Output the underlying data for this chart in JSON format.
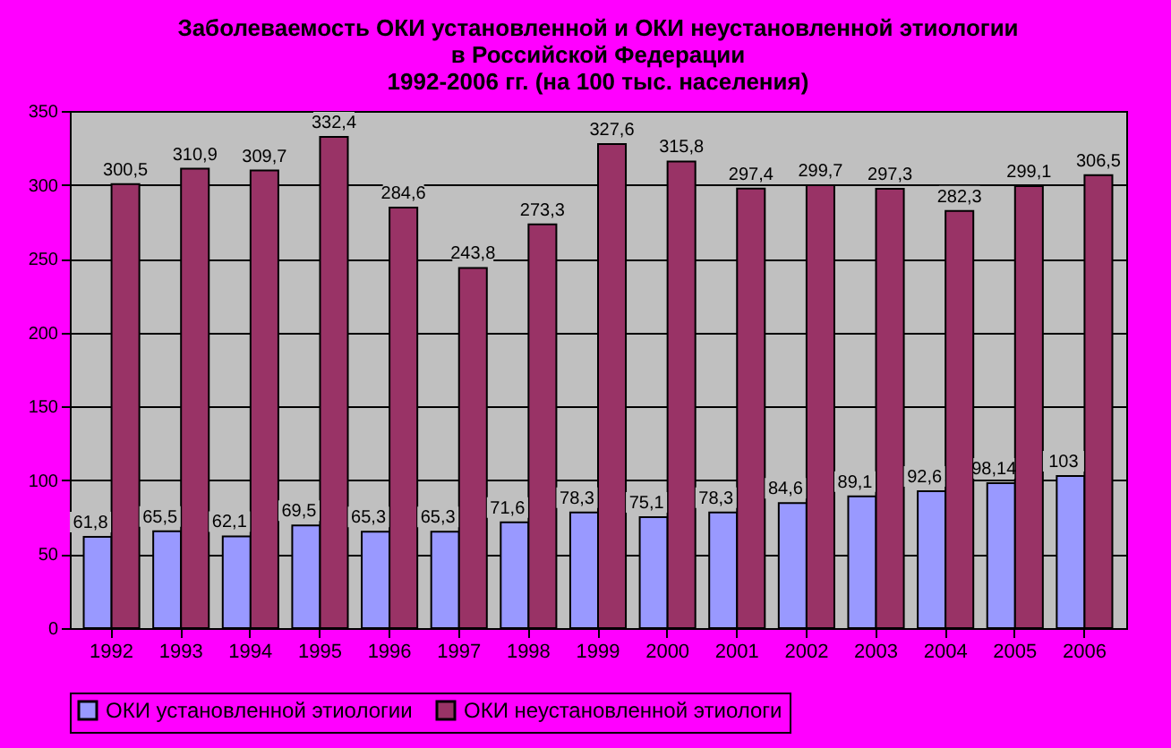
{
  "chart_data": {
    "type": "bar",
    "title": [
      "Заболеваемость ОКИ установленной и ОКИ неустановленной этиологии",
      "в Российской Федерации",
      "1992-2006 гг. (на 100 тыс. населения)"
    ],
    "categories": [
      "1992",
      "1993",
      "1994",
      "1995",
      "1996",
      "1997",
      "1998",
      "1999",
      "2000",
      "2001",
      "2002",
      "2003",
      "2004",
      "2005",
      "2006"
    ],
    "series": [
      {
        "name": "ОКИ установленной этиологии",
        "color": "#9999ff",
        "values": [
          61.8,
          65.5,
          62.1,
          69.5,
          65.3,
          65.3,
          71.6,
          78.3,
          75.1,
          78.3,
          84.6,
          89.1,
          92.6,
          98.14,
          103
        ],
        "value_labels": [
          "61,8",
          "65,5",
          "62,1",
          "69,5",
          "65,3",
          "65,3",
          "71,6",
          "78,3",
          "75,1",
          "78,3",
          "84,6",
          "89,1",
          "92,6",
          "98,14",
          "103"
        ]
      },
      {
        "name": "ОКИ неустановленной этиологи",
        "color": "#993366",
        "values": [
          300.5,
          310.9,
          309.7,
          332.4,
          284.6,
          243.8,
          273.3,
          327.6,
          315.8,
          297.4,
          299.7,
          297.3,
          282.3,
          299.1,
          306.5
        ],
        "value_labels": [
          "300,5",
          "310,9",
          "309,7",
          "332,4",
          "284,6",
          "243,8",
          "273,3",
          "327,6",
          "315,8",
          "297,4",
          "299,7",
          "297,3",
          "282,3",
          "299,1",
          "306,5"
        ]
      }
    ],
    "ylim": [
      0,
      350
    ],
    "yticks": [
      0,
      50,
      100,
      150,
      200,
      250,
      300,
      350
    ],
    "grid": "y",
    "legend": "bottom"
  }
}
